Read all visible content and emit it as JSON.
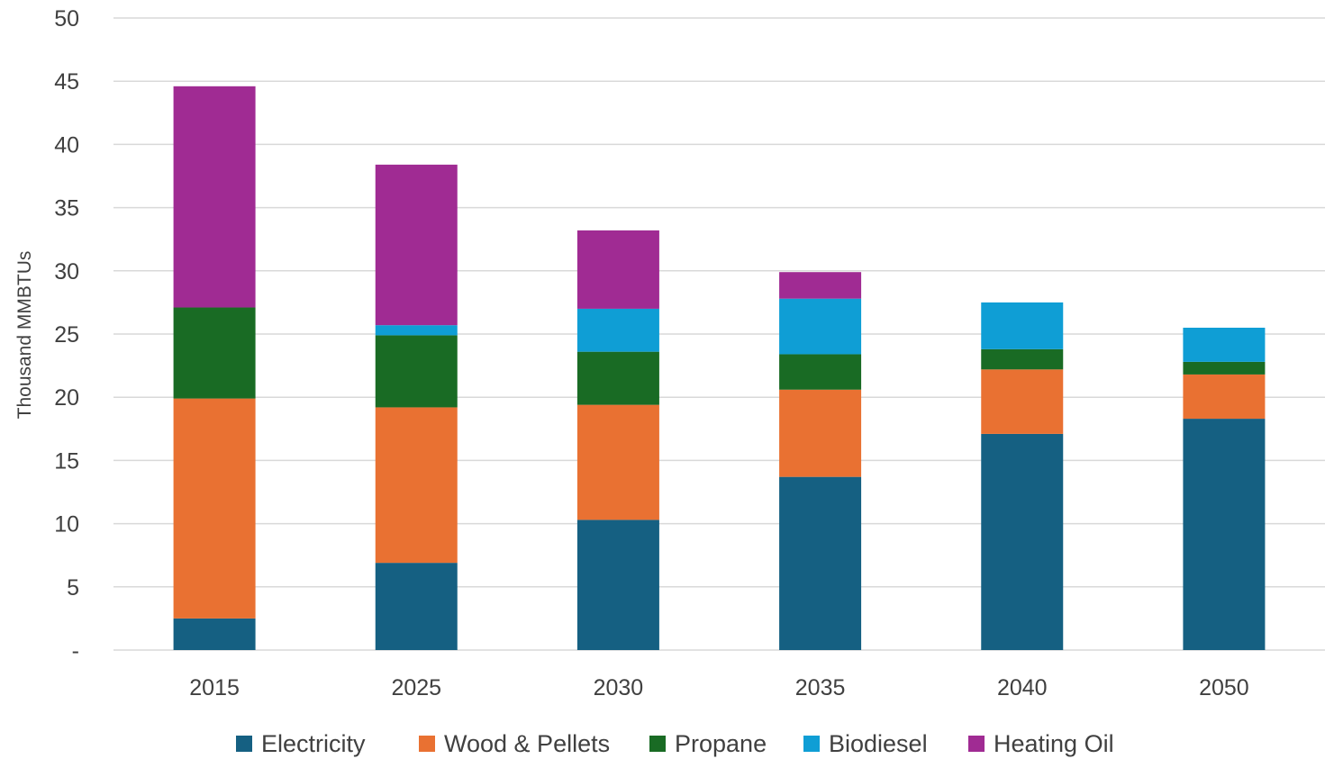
{
  "chart_data": {
    "type": "bar",
    "stacked": true,
    "title": "",
    "xlabel": "",
    "ylabel": "Thousand MMBTUs",
    "ylim": [
      0,
      50
    ],
    "yticks": [
      0,
      5,
      10,
      15,
      20,
      25,
      30,
      35,
      40,
      45,
      50
    ],
    "ytick_labels": [
      "-",
      "5",
      "10",
      "15",
      "20",
      "25",
      "30",
      "35",
      "40",
      "45",
      "50"
    ],
    "grid": true,
    "legend_position": "bottom",
    "categories": [
      "2015",
      "2025",
      "2030",
      "2035",
      "2040",
      "2050"
    ],
    "series": [
      {
        "name": "Electricity",
        "color": "#156082",
        "values": [
          2.5,
          6.9,
          10.3,
          13.7,
          17.1,
          18.3
        ]
      },
      {
        "name": "Wood & Pellets",
        "color": "#e97132",
        "values": [
          17.4,
          12.3,
          9.1,
          6.9,
          5.1,
          3.5
        ]
      },
      {
        "name": "Propane",
        "color": "#196b24",
        "values": [
          7.2,
          5.7,
          4.2,
          2.8,
          1.6,
          1.0
        ]
      },
      {
        "name": "Biodiesel",
        "color": "#0f9ed5",
        "values": [
          0.0,
          0.8,
          3.4,
          4.4,
          3.7,
          2.7
        ]
      },
      {
        "name": "Heating Oil",
        "color": "#a02b93",
        "values": [
          17.5,
          12.7,
          6.2,
          2.1,
          0.0,
          0.0
        ]
      }
    ]
  }
}
